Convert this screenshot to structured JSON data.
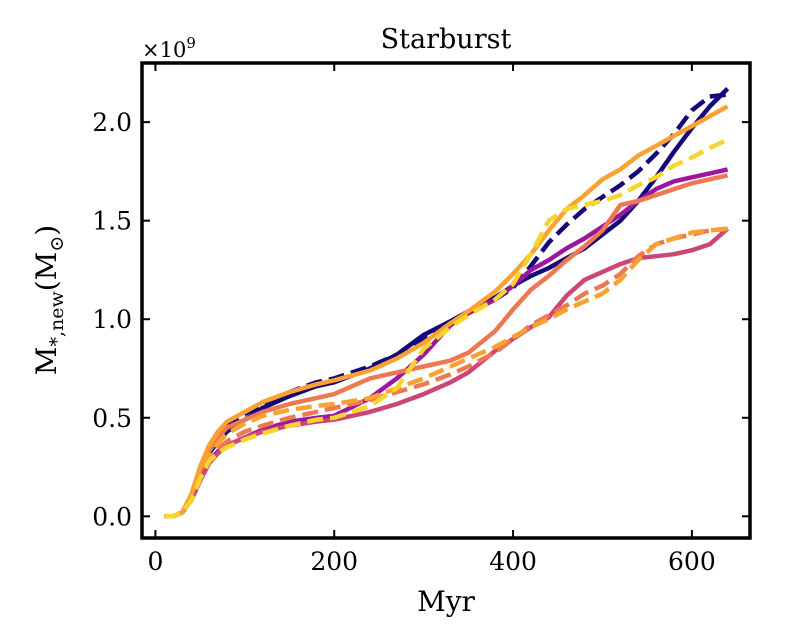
{
  "chart_data": {
    "type": "line",
    "title": "Starburst",
    "xlabel": "Myr",
    "ylabel": "M",
    "ylabel_sub": "*,new",
    "ylabel_unit": "(M",
    "ylabel_unit_sub": "⊙",
    "ylabel_unit_close": ")",
    "offset_text": "×10",
    "offset_exp": "9",
    "xlim": [
      -15,
      665
    ],
    "ylim": [
      -0.11,
      2.3
    ],
    "xticks": [
      0,
      200,
      400,
      600
    ],
    "xtick_labels": [
      "0",
      "200",
      "400",
      "600"
    ],
    "yticks": [
      0.0,
      0.5,
      1.0,
      1.5,
      2.0
    ],
    "ytick_labels": [
      "0.0",
      "0.5",
      "1.0",
      "1.5",
      "2.0"
    ],
    "grid": false,
    "series": [
      {
        "name": "solid-navy",
        "color": "#14087a",
        "dash": "solid",
        "x": [
          10,
          20,
          30,
          40,
          50,
          60,
          70,
          80,
          100,
          120,
          150,
          180,
          200,
          240,
          270,
          300,
          330,
          350,
          380,
          400,
          420,
          440,
          460,
          480,
          500,
          520,
          540,
          560,
          580,
          600,
          620,
          640
        ],
        "y": [
          0.0,
          0.0,
          0.02,
          0.09,
          0.21,
          0.32,
          0.38,
          0.43,
          0.49,
          0.55,
          0.61,
          0.66,
          0.68,
          0.75,
          0.82,
          0.92,
          0.99,
          1.04,
          1.11,
          1.17,
          1.22,
          1.26,
          1.31,
          1.36,
          1.43,
          1.5,
          1.6,
          1.72,
          1.85,
          1.97,
          2.08,
          2.17
        ]
      },
      {
        "name": "dashed-navy",
        "color": "#14087a",
        "dash": "dashed",
        "x": [
          10,
          20,
          30,
          40,
          50,
          60,
          70,
          80,
          100,
          120,
          150,
          180,
          200,
          240,
          270,
          300,
          330,
          350,
          380,
          400,
          420,
          440,
          460,
          480,
          500,
          520,
          540,
          560,
          580,
          600,
          620,
          640
        ],
        "y": [
          0.0,
          0.0,
          0.02,
          0.1,
          0.24,
          0.35,
          0.41,
          0.46,
          0.52,
          0.57,
          0.63,
          0.68,
          0.7,
          0.76,
          0.82,
          0.9,
          0.98,
          1.03,
          1.1,
          1.16,
          1.27,
          1.39,
          1.48,
          1.56,
          1.62,
          1.68,
          1.75,
          1.84,
          1.94,
          2.06,
          2.13,
          2.14
        ]
      },
      {
        "name": "solid-purple",
        "color": "#9c179e",
        "dash": "solid",
        "x": [
          10,
          20,
          30,
          40,
          50,
          60,
          70,
          80,
          100,
          120,
          150,
          180,
          200,
          240,
          270,
          300,
          330,
          350,
          380,
          400,
          420,
          440,
          460,
          480,
          500,
          520,
          540,
          560,
          580,
          600,
          620,
          640
        ],
        "y": [
          0.0,
          0.0,
          0.02,
          0.08,
          0.19,
          0.28,
          0.33,
          0.36,
          0.4,
          0.44,
          0.48,
          0.5,
          0.51,
          0.6,
          0.7,
          0.82,
          0.97,
          1.03,
          1.1,
          1.17,
          1.25,
          1.3,
          1.36,
          1.41,
          1.47,
          1.53,
          1.6,
          1.66,
          1.7,
          1.72,
          1.74,
          1.76
        ]
      },
      {
        "name": "solid-magenta",
        "color": "#cc4778",
        "dash": "solid",
        "x": [
          10,
          20,
          30,
          40,
          50,
          60,
          70,
          80,
          100,
          120,
          150,
          180,
          200,
          240,
          270,
          300,
          330,
          350,
          380,
          400,
          420,
          440,
          460,
          480,
          500,
          520,
          540,
          560,
          580,
          600,
          620,
          640
        ],
        "y": [
          0.0,
          0.0,
          0.02,
          0.08,
          0.18,
          0.27,
          0.32,
          0.36,
          0.4,
          0.43,
          0.46,
          0.48,
          0.49,
          0.53,
          0.57,
          0.62,
          0.68,
          0.73,
          0.84,
          0.9,
          0.96,
          1.01,
          1.12,
          1.2,
          1.24,
          1.28,
          1.31,
          1.32,
          1.33,
          1.35,
          1.38,
          1.46
        ]
      },
      {
        "name": "solid-coral",
        "color": "#ed7953",
        "dash": "solid",
        "x": [
          10,
          20,
          30,
          40,
          50,
          60,
          70,
          80,
          100,
          120,
          150,
          180,
          200,
          240,
          270,
          300,
          330,
          350,
          380,
          400,
          420,
          440,
          460,
          480,
          500,
          520,
          540,
          560,
          580,
          600,
          620,
          640
        ],
        "y": [
          0.0,
          0.0,
          0.02,
          0.1,
          0.23,
          0.33,
          0.4,
          0.45,
          0.49,
          0.53,
          0.57,
          0.6,
          0.62,
          0.7,
          0.73,
          0.76,
          0.79,
          0.83,
          0.94,
          1.05,
          1.15,
          1.22,
          1.3,
          1.37,
          1.45,
          1.58,
          1.6,
          1.63,
          1.66,
          1.69,
          1.71,
          1.73
        ]
      },
      {
        "name": "dashed-coral",
        "color": "#ed7953",
        "dash": "dashed",
        "x": [
          10,
          20,
          30,
          40,
          50,
          60,
          70,
          80,
          100,
          120,
          150,
          180,
          200,
          240,
          270,
          300,
          330,
          350,
          380,
          400,
          420,
          440,
          460,
          480,
          500,
          520,
          540,
          560,
          580,
          600,
          620,
          640
        ],
        "y": [
          0.0,
          0.0,
          0.02,
          0.09,
          0.2,
          0.29,
          0.34,
          0.38,
          0.43,
          0.46,
          0.5,
          0.53,
          0.55,
          0.59,
          0.63,
          0.67,
          0.72,
          0.76,
          0.83,
          0.9,
          0.97,
          1.02,
          1.07,
          1.13,
          1.17,
          1.23,
          1.32,
          1.38,
          1.41,
          1.43,
          1.45,
          1.46
        ]
      },
      {
        "name": "solid-orange",
        "color": "#f9a231",
        "dash": "solid",
        "x": [
          10,
          20,
          30,
          40,
          50,
          60,
          70,
          80,
          100,
          120,
          150,
          180,
          200,
          240,
          270,
          300,
          330,
          350,
          380,
          400,
          420,
          440,
          460,
          480,
          500,
          520,
          540,
          560,
          580,
          600,
          620,
          640
        ],
        "y": [
          0.0,
          0.0,
          0.02,
          0.11,
          0.25,
          0.36,
          0.43,
          0.48,
          0.53,
          0.58,
          0.63,
          0.67,
          0.69,
          0.74,
          0.8,
          0.88,
          0.98,
          1.04,
          1.14,
          1.23,
          1.33,
          1.45,
          1.56,
          1.63,
          1.71,
          1.76,
          1.83,
          1.88,
          1.93,
          1.98,
          2.03,
          2.08
        ]
      },
      {
        "name": "dashed-orange",
        "color": "#f9a231",
        "dash": "dashed",
        "x": [
          10,
          20,
          30,
          40,
          50,
          60,
          70,
          80,
          100,
          120,
          150,
          180,
          200,
          240,
          270,
          300,
          330,
          350,
          380,
          400,
          420,
          440,
          460,
          480,
          500,
          520,
          540,
          560,
          580,
          600,
          620,
          640
        ],
        "y": [
          0.0,
          0.0,
          0.02,
          0.09,
          0.21,
          0.31,
          0.37,
          0.42,
          0.47,
          0.51,
          0.54,
          0.56,
          0.57,
          0.6,
          0.65,
          0.7,
          0.76,
          0.8,
          0.86,
          0.91,
          0.96,
          1.0,
          1.05,
          1.09,
          1.13,
          1.2,
          1.3,
          1.38,
          1.41,
          1.44,
          1.45,
          1.46
        ]
      },
      {
        "name": "dashed-yellow",
        "color": "#f6d52c",
        "dash": "dashed",
        "x": [
          10,
          20,
          30,
          40,
          50,
          60,
          70,
          80,
          100,
          120,
          150,
          180,
          200,
          240,
          270,
          300,
          330,
          350,
          380,
          400,
          420,
          440,
          460,
          480,
          500,
          520,
          540,
          560,
          580,
          600,
          620,
          640
        ],
        "y": [
          0.0,
          0.0,
          0.02,
          0.08,
          0.19,
          0.28,
          0.32,
          0.35,
          0.39,
          0.42,
          0.46,
          0.49,
          0.5,
          0.56,
          0.65,
          0.85,
          0.96,
          1.02,
          1.1,
          1.18,
          1.33,
          1.5,
          1.56,
          1.58,
          1.6,
          1.63,
          1.68,
          1.72,
          1.78,
          1.82,
          1.87,
          1.91
        ]
      }
    ]
  }
}
